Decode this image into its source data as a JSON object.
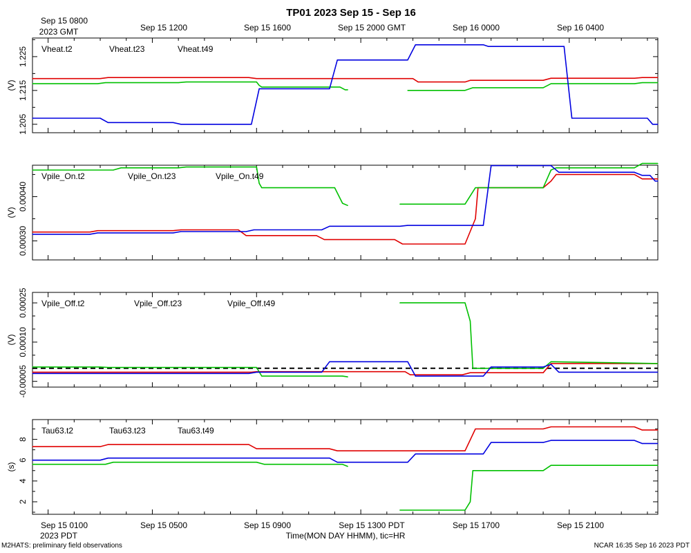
{
  "chart_data": {
    "type": "line",
    "title": "TP01 2023 Sep 15 - Sep 16",
    "top_time_labels": [
      "Sep 15 0800",
      "Sep 15 1200",
      "Sep 15 1600",
      "Sep 15 2000 GMT",
      "Sep 16 0000",
      "Sep 16 0400"
    ],
    "top_zone_label": "2023 GMT",
    "bottom_time_labels": [
      "Sep 15 0100",
      "Sep 15 0500",
      "Sep 15 0900",
      "Sep 15 1300 PDT",
      "Sep 15 1700",
      "Sep 15 2100"
    ],
    "bottom_zone_label": "2023 PDT",
    "xlabel": "Time(MON DAY HHMM), tic=HR",
    "footer_left": "M2HATS: preliminary field observations",
    "footer_right": "NCAR 16:35 Sep 16 2023 PDT",
    "x_unit": "hours since Sep 15 0000 PDT",
    "xlim": [
      0.4,
      24.4
    ],
    "colors": [
      "#e00000",
      "#00c000",
      "#0000e0"
    ],
    "panels": [
      {
        "ylabel": "(V)",
        "ylim": [
          1.2025,
          1.2305
        ],
        "yticks": [
          1.205,
          1.215,
          1.225
        ],
        "ytick_labels": [
          "1.205",
          "1.215",
          "1.225"
        ],
        "minor_yticks": [
          1.21,
          1.22,
          1.23
        ],
        "series": [
          {
            "name": "Vheat.t2",
            "points": [
              [
                0.4,
                1.2185
              ],
              [
                3.0,
                1.2185
              ],
              [
                3.3,
                1.2188
              ],
              [
                8.7,
                1.2188
              ],
              [
                9.0,
                1.2185
              ],
              [
                15.0,
                1.2185
              ],
              [
                15.2,
                1.2175
              ],
              [
                17.0,
                1.2175
              ],
              [
                17.2,
                1.218
              ],
              [
                20.0,
                1.218
              ],
              [
                20.3,
                1.2186
              ],
              [
                23.5,
                1.2186
              ],
              [
                23.8,
                1.2188
              ],
              [
                24.4,
                1.2188
              ]
            ]
          },
          {
            "name": "Vheat.t23",
            "points": [
              [
                0.4,
                1.217
              ],
              [
                2.9,
                1.217
              ],
              [
                3.2,
                1.2173
              ],
              [
                6.0,
                1.2173
              ],
              [
                6.3,
                1.2175
              ],
              [
                9.0,
                1.2175
              ],
              [
                9.1,
                1.2165
              ],
              [
                9.2,
                1.216
              ],
              [
                12.2,
                1.216
              ],
              [
                12.4,
                1.2152
              ],
              [
                12.5,
                1.2152
              ],
              null,
              [
                14.8,
                1.215
              ],
              [
                17.0,
                1.215
              ],
              [
                17.3,
                1.2158
              ],
              [
                20.0,
                1.2158
              ],
              [
                20.3,
                1.217
              ],
              [
                23.5,
                1.217
              ],
              [
                23.8,
                1.2173
              ],
              [
                24.4,
                1.2173
              ]
            ]
          },
          {
            "name": "Vheat.t49",
            "points": [
              [
                0.4,
                1.2068
              ],
              [
                3.0,
                1.2068
              ],
              [
                3.3,
                1.2055
              ],
              [
                5.8,
                1.2055
              ],
              [
                6.1,
                1.205
              ],
              [
                8.8,
                1.205
              ],
              [
                9.1,
                1.2155
              ],
              [
                11.8,
                1.2155
              ],
              [
                12.1,
                1.224
              ],
              [
                14.8,
                1.224
              ],
              [
                15.1,
                1.2285
              ],
              [
                17.7,
                1.2285
              ],
              [
                17.9,
                1.228
              ],
              [
                20.8,
                1.228
              ],
              [
                21.1,
                1.2068
              ],
              [
                24.0,
                1.2068
              ],
              [
                24.2,
                1.205
              ],
              [
                24.4,
                1.205
              ]
            ]
          }
        ],
        "legend": [
          "Vheat.t2",
          "Vheat.t23",
          "Vheat.t49"
        ]
      },
      {
        "ylabel": "(V)",
        "ylim": [
          0.000257,
          0.000471
        ],
        "yticks": [
          0.0003,
          0.0004
        ],
        "ytick_labels": [
          "0.00030",
          "0.00040"
        ],
        "minor_yticks": [
          0.00035,
          0.00045
        ],
        "series": [
          {
            "name": "Vpile_On.t2",
            "points": [
              [
                0.4,
                0.00032
              ],
              [
                2.6,
                0.00032
              ],
              [
                2.9,
                0.000323
              ],
              [
                5.8,
                0.000323
              ],
              [
                6.1,
                0.000325
              ],
              [
                8.3,
                0.000325
              ],
              [
                8.6,
                0.000312
              ],
              [
                11.3,
                0.000312
              ],
              [
                11.6,
                0.000303
              ],
              [
                14.3,
                0.000303
              ],
              [
                14.6,
                0.000293
              ],
              [
                17.0,
                0.000293
              ],
              [
                17.4,
                0.00035
              ],
              [
                17.5,
                0.00042
              ],
              [
                20.0,
                0.00042
              ],
              [
                20.3,
                0.000435
              ],
              [
                20.5,
                0.00045
              ],
              [
                23.5,
                0.00045
              ],
              [
                23.8,
                0.00044
              ],
              [
                24.4,
                0.00044
              ]
            ]
          },
          {
            "name": "Vpile_On.t23",
            "points": [
              [
                0.4,
                0.00046
              ],
              [
                3.5,
                0.00046
              ],
              [
                3.8,
                0.000465
              ],
              [
                6.0,
                0.000465
              ],
              [
                6.3,
                0.000467
              ],
              [
                9.0,
                0.000467
              ],
              [
                9.1,
                0.00043
              ],
              [
                9.2,
                0.00042
              ],
              [
                12.0,
                0.00042
              ],
              [
                12.3,
                0.000385
              ],
              [
                12.5,
                0.00038
              ],
              null,
              [
                14.5,
                0.000383
              ],
              [
                17.0,
                0.000383
              ],
              [
                17.4,
                0.00042
              ],
              [
                20.0,
                0.00042
              ],
              [
                20.3,
                0.00046
              ],
              [
                20.5,
                0.000465
              ],
              [
                23.5,
                0.000465
              ],
              [
                23.8,
                0.000475
              ],
              [
                24.4,
                0.000475
              ]
            ]
          },
          {
            "name": "Vpile_On.t49",
            "points": [
              [
                0.4,
                0.000315
              ],
              [
                2.6,
                0.000315
              ],
              [
                2.9,
                0.000318
              ],
              [
                5.8,
                0.000318
              ],
              [
                6.1,
                0.000321
              ],
              [
                8.6,
                0.000321
              ],
              [
                8.9,
                0.000325
              ],
              [
                11.5,
                0.000325
              ],
              [
                11.8,
                0.000333
              ],
              [
                14.5,
                0.000333
              ],
              [
                14.8,
                0.000335
              ],
              [
                17.7,
                0.000335
              ],
              [
                18.0,
                0.00047
              ],
              [
                20.3,
                0.00047
              ],
              [
                20.6,
                0.000455
              ],
              [
                23.5,
                0.000455
              ],
              [
                23.8,
                0.000448
              ],
              [
                24.1,
                0.000448
              ],
              [
                24.3,
                0.000435
              ],
              [
                24.4,
                0.000435
              ]
            ]
          }
        ],
        "legend": [
          "Vpile_On.t2",
          "Vpile_On.t23",
          "Vpile_On.t49"
        ]
      },
      {
        "ylabel": "(V)",
        "ylim": [
          -7.2e-05,
          0.00029
        ],
        "yticks": [
          -5e-05,
          0.0001,
          0.00025
        ],
        "ytick_labels": [
          "-0.00005",
          "0.00010",
          "0.00025"
        ],
        "minor_yticks": [
          0.0,
          5e-05,
          0.00015,
          0.0002
        ],
        "zero_line": true,
        "series": [
          {
            "name": "Vpile_Off.t2",
            "points": [
              [
                0.4,
                -1.5e-05
              ],
              [
                8.8,
                -1.5e-05
              ],
              [
                9.0,
                -1.3e-05
              ],
              [
                14.7,
                -1.3e-05
              ],
              [
                14.9,
                -2.5e-05
              ],
              [
                16.9,
                -2.5e-05
              ],
              [
                17.2,
                -1.7e-05
              ],
              [
                20.0,
                -1.7e-05
              ],
              [
                20.3,
                1.8e-05
              ],
              [
                24.4,
                1.8e-05
              ]
            ]
          },
          {
            "name": "Vpile_Off.t23",
            "points": [
              [
                0.4,
                5e-06
              ],
              [
                3.0,
                5e-06
              ],
              [
                3.3,
                3e-06
              ],
              [
                9.0,
                3e-06
              ],
              [
                9.2,
                -3e-05
              ],
              [
                12.3,
                -3e-05
              ],
              [
                12.5,
                -3.3e-05
              ],
              null,
              [
                14.5,
                0.00025
              ],
              [
                17.0,
                0.00025
              ],
              [
                17.2,
                0.00018
              ],
              [
                17.3,
                0.0
              ],
              [
                20.0,
                0.0
              ],
              [
                20.3,
                2.5e-05
              ],
              [
                24.4,
                1.8e-05
              ]
            ]
          },
          {
            "name": "Vpile_Off.t49",
            "points": [
              [
                0.4,
                -2e-05
              ],
              [
                8.7,
                -2e-05
              ],
              [
                9.0,
                -1.5e-05
              ],
              [
                11.5,
                -1.5e-05
              ],
              [
                11.8,
                2.5e-05
              ],
              [
                14.8,
                2.5e-05
              ],
              [
                15.1,
                -3e-05
              ],
              [
                17.7,
                -3e-05
              ],
              [
                18.0,
                5e-06
              ],
              [
                20.0,
                5e-06
              ],
              [
                20.3,
                1.5e-05
              ],
              [
                20.6,
                -1.5e-05
              ],
              [
                24.4,
                -1.5e-05
              ]
            ]
          }
        ],
        "legend": [
          "Vpile_Off.t2",
          "Vpile_Off.t23",
          "Vpile_Off.t49"
        ]
      },
      {
        "ylabel": "(s)",
        "ylim": [
          0.8,
          9.9
        ],
        "yticks": [
          2,
          4,
          6,
          8
        ],
        "ytick_labels": [
          "2",
          "4",
          "6",
          "8"
        ],
        "minor_yticks": [
          1,
          3,
          5,
          7,
          9
        ],
        "series": [
          {
            "name": "Tau63.t2",
            "points": [
              [
                0.4,
                7.3
              ],
              [
                3.0,
                7.3
              ],
              [
                3.3,
                7.5
              ],
              [
                8.7,
                7.5
              ],
              [
                9.0,
                7.1
              ],
              [
                11.8,
                7.1
              ],
              [
                12.1,
                6.9
              ],
              [
                17.0,
                6.9
              ],
              [
                17.4,
                9.0
              ],
              [
                20.0,
                9.0
              ],
              [
                20.3,
                9.2
              ],
              [
                23.5,
                9.2
              ],
              [
                23.8,
                8.9
              ],
              [
                24.4,
                8.9
              ]
            ]
          },
          {
            "name": "Tau63.t23",
            "points": [
              [
                0.4,
                5.6
              ],
              [
                3.2,
                5.6
              ],
              [
                3.5,
                5.8
              ],
              [
                9.0,
                5.8
              ],
              [
                9.3,
                5.6
              ],
              [
                12.3,
                5.6
              ],
              [
                12.5,
                5.4
              ],
              null,
              [
                14.5,
                1.2
              ],
              [
                17.0,
                1.2
              ],
              [
                17.2,
                2.0
              ],
              [
                17.3,
                5.0
              ],
              [
                20.0,
                5.0
              ],
              [
                20.3,
                5.5
              ],
              [
                24.4,
                5.5
              ]
            ]
          },
          {
            "name": "Tau63.t49",
            "points": [
              [
                0.4,
                6.0
              ],
              [
                3.0,
                6.0
              ],
              [
                3.3,
                6.2
              ],
              [
                11.8,
                6.2
              ],
              [
                12.1,
                5.8
              ],
              [
                14.8,
                5.8
              ],
              [
                15.1,
                6.6
              ],
              [
                17.7,
                6.6
              ],
              [
                18.0,
                7.7
              ],
              [
                20.0,
                7.7
              ],
              [
                20.3,
                7.9
              ],
              [
                23.5,
                7.9
              ],
              [
                23.8,
                7.6
              ],
              [
                24.4,
                7.6
              ]
            ]
          }
        ],
        "legend": [
          "Tau63.t2",
          "Tau63.t23",
          "Tau63.t49"
        ]
      }
    ]
  }
}
